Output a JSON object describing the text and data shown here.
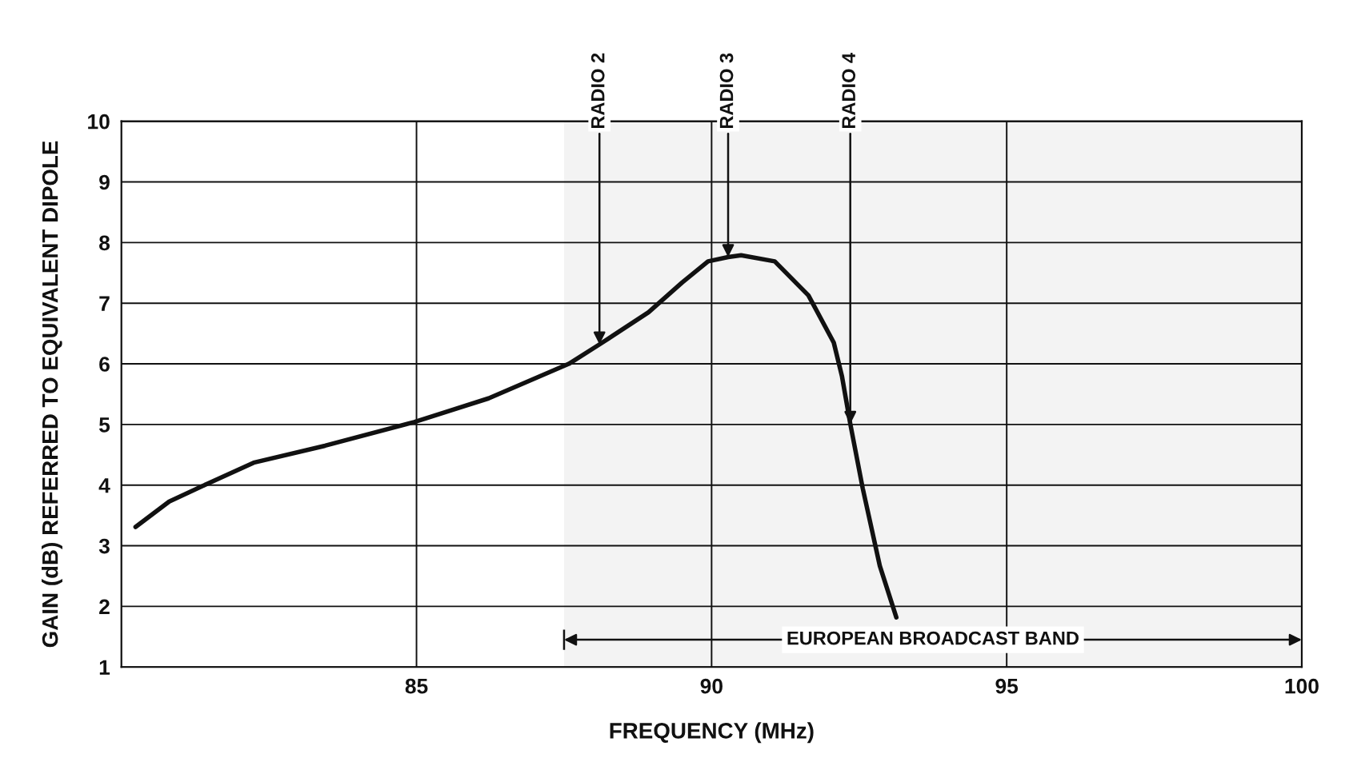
{
  "chart_data": {
    "type": "line",
    "xlabel": "FREQUENCY (MHz)",
    "ylabel": "GAIN (dB) REFERRED TO EQUIVALENT DIPOLE",
    "x": [
      80.24,
      80.81,
      81.45,
      82.24,
      83.45,
      84.96,
      86.22,
      87.58,
      88.1,
      88.93,
      89.5,
      89.94,
      90.28,
      90.5,
      91.07,
      91.64,
      92.07,
      92.21,
      92.35,
      92.56,
      92.85,
      93.13
    ],
    "series": [
      {
        "color": "#111111",
        "values": [
          3.31,
          3.73,
          4.02,
          4.37,
          4.65,
          5.04,
          5.43,
          6.0,
          6.32,
          6.85,
          7.34,
          7.69,
          7.76,
          7.79,
          7.69,
          7.13,
          6.35,
          5.79,
          5.01,
          3.95,
          2.67,
          1.82
        ]
      }
    ],
    "xlim": [
      80,
      100
    ],
    "ylim": [
      1,
      10
    ],
    "xticks": [
      85,
      90,
      95,
      100
    ],
    "yticks": [
      1,
      2,
      3,
      4,
      5,
      6,
      7,
      8,
      9,
      10
    ],
    "grid": true,
    "marker": "none",
    "line_style": "solid",
    "annotations": [
      {
        "text": "RADIO 2",
        "x": 88.1,
        "y": 6.32
      },
      {
        "text": "RADIO 3",
        "x": 90.28,
        "y": 7.76
      },
      {
        "text": "RADIO 4",
        "x": 92.35,
        "y": 5.01
      }
    ],
    "bands": [
      {
        "axis": "x",
        "from": 87.5,
        "to": 100,
        "label": "EUROPEAN BROADCAST BAND",
        "color": "#f3f3f3"
      }
    ]
  }
}
